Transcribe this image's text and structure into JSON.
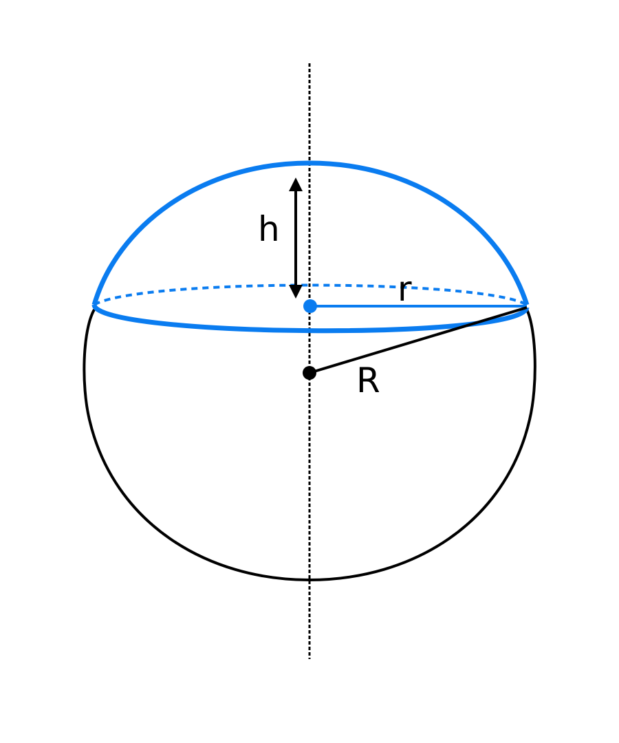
{
  "diagram": {
    "labels": {
      "cap_height": "h",
      "base_radius": "r",
      "sphere_radius": "R"
    },
    "colors": {
      "cap": "#0a7cf0",
      "sphere": "#000000",
      "background": "#ffffff"
    }
  }
}
